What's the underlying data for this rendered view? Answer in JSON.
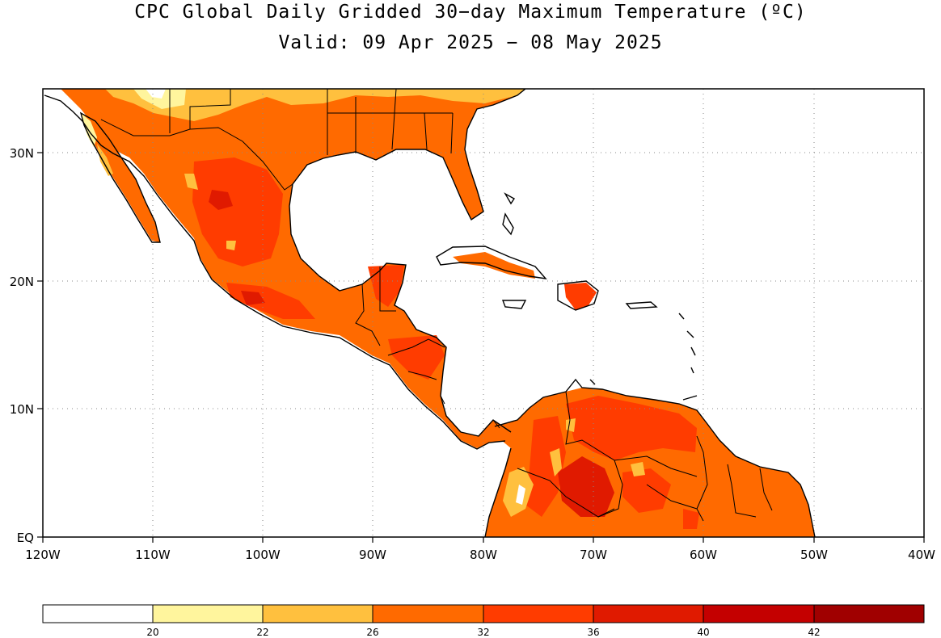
{
  "title": {
    "line1": "CPC Global Daily Gridded 30−day Maximum Temperature (ºC)",
    "line2": "Valid: 09 Apr 2025 − 08 May 2025"
  },
  "map": {
    "lon_range": [
      -120,
      -40
    ],
    "lat_range": [
      0,
      35
    ],
    "grid": "dotted",
    "x_ticks": [
      "120W",
      "110W",
      "100W",
      "90W",
      "80W",
      "70W",
      "60W",
      "50W",
      "40W"
    ],
    "y_ticks": [
      "EQ",
      "10N",
      "20N",
      "30N"
    ]
  },
  "colorbar": {
    "labels": [
      "20",
      "22",
      "26",
      "32",
      "36",
      "40",
      "42"
    ],
    "colors": [
      "#ffffff",
      "#fff59d",
      "#ffc03e",
      "#ff6a00",
      "#ff3c00",
      "#e01a00",
      "#c40000",
      "#a00000"
    ]
  }
}
